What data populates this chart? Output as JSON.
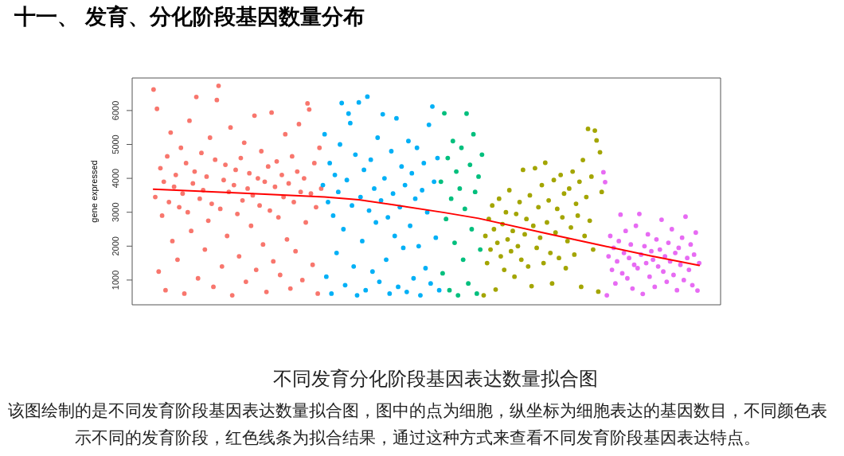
{
  "chart_data": {
    "type": "scatter",
    "title": "十一、 发育、分化阶段基因数量分布",
    "ylabel": "gene expressed",
    "annotations": [
      "不同发育分化阶段基因表达数量拟合图",
      "该图绘制的是不同发育阶段基因表达数量拟合图，图中的点为细胞，纵坐标为细胞表达的基因数目，不同颜色表示不同的发育阶段，红色线条为拟合结果，通过这种方式来查看不同发育阶段基因表达特点。"
    ],
    "categories": [
      null,
      null,
      null,
      null,
      null,
      null,
      null,
      null,
      null,
      null,
      null,
      null,
      null,
      null,
      null,
      null,
      null,
      null,
      null,
      null,
      null,
      null,
      null,
      null,
      null,
      null,
      null,
      null,
      null,
      null,
      null,
      null,
      null,
      null,
      null,
      null,
      null,
      null,
      null,
      null,
      null,
      null,
      null,
      null,
      null,
      null,
      null,
      null,
      null,
      null,
      null,
      null,
      null,
      null,
      null,
      null,
      null,
      null,
      null,
      null,
      null,
      null,
      null,
      null,
      null,
      null,
      null,
      null,
      null,
      null,
      null,
      null,
      null,
      null,
      null,
      null,
      null,
      null,
      null,
      null,
      null,
      null,
      null,
      null,
      null,
      null,
      null,
      null,
      null,
      null,
      null,
      null,
      null,
      null,
      null,
      null,
      null,
      null,
      null,
      null,
      null,
      null,
      null,
      null,
      null,
      null,
      null,
      null,
      null,
      null,
      null,
      null,
      null,
      null,
      null,
      null,
      null,
      null,
      null,
      null,
      null,
      null,
      null,
      null,
      null,
      null,
      null,
      null,
      null,
      null,
      null,
      null,
      null,
      null,
      null,
      null,
      null,
      null,
      null,
      null,
      null,
      null,
      null,
      null,
      null,
      null,
      null,
      null,
      null,
      null,
      null,
      null,
      null,
      null,
      null,
      null,
      null,
      null,
      null,
      null,
      null,
      null,
      null,
      null,
      null,
      null,
      null,
      null,
      null,
      null,
      null,
      null,
      null,
      null,
      null,
      null,
      null,
      null,
      null,
      null,
      null,
      null,
      null,
      null,
      null,
      null,
      null,
      null,
      null,
      null,
      null,
      null,
      null,
      null,
      null,
      null,
      null,
      null,
      null,
      null,
      null,
      null,
      null,
      null,
      null,
      null,
      null,
      null,
      null,
      null,
      null,
      null,
      null,
      null,
      null,
      null,
      null,
      null,
      null,
      null,
      null,
      null,
      null,
      null,
      null,
      null,
      null,
      null,
      null,
      null,
      null,
      null,
      null,
      null,
      null,
      null,
      null,
      null,
      null,
      null,
      null,
      null,
      null,
      null,
      null,
      null,
      null,
      null,
      null,
      null,
      null,
      null,
      null,
      null,
      null,
      null,
      null,
      null,
      null,
      null,
      null,
      null,
      null,
      null,
      null,
      null,
      null,
      null,
      null,
      null,
      null,
      null,
      null,
      null,
      null,
      null,
      null,
      null,
      null,
      null,
      null,
      null,
      null,
      null,
      null,
      null,
      null,
      null,
      null,
      null,
      null,
      null,
      null,
      null,
      null,
      null,
      null,
      null,
      null,
      null,
      null,
      null,
      null,
      null,
      null,
      null,
      null,
      null,
      null,
      null,
      null,
      null,
      null,
      null,
      null,
      null,
      null,
      null,
      null,
      null,
      null,
      null,
      null,
      null,
      null,
      null,
      null,
      null,
      null,
      null,
      null,
      null,
      null,
      null,
      null,
      null,
      null,
      null,
      null,
      null,
      null,
      null,
      null,
      null
    ],
    "series": [
      {
        "color": "#f8766d",
        "values": [
          null,
          null,
          null,
          null,
          null,
          null,
          null,
          null,
          null,
          null,
          null,
          null,
          6620,
          3450,
          6050,
          1250,
          4300,
          2900,
          3900,
          700,
          4650,
          3300,
          5350,
          2150,
          3750,
          4100,
          1600,
          3150,
          4900,
          3550,
          600,
          4450,
          3000,
          5700,
          2450,
          3850,
          4200,
          6400,
          1050,
          3400,
          4750,
          3650,
          1900,
          4050,
          2750,
          5200,
          3250,
          800,
          4550,
          6310,
          6730,
          3100,
          1400,
          3950,
          4400,
          2300,
          3600,
          5500,
          550,
          3800,
          4250,
          2950,
          1700,
          4600,
          3350,
          5050,
          950,
          3700,
          4150,
          2600,
          3500,
          5850,
          1300,
          4000,
          3200,
          4800,
          2050,
          3900,
          650,
          4350,
          3050,
          5940,
          1550,
          3750,
          4500,
          2850,
          1150,
          4100,
          3450,
          5300,
          2200,
          3850,
          750,
          4650,
          3300,
          1850,
          4200,
          5600,
          3600,
          1000,
          4000,
          2700,
          6210,
          6030,
          3550,
          1450,
          4450,
          3150,
          600,
          4900,
          3700,
          null,
          null,
          null,
          null,
          null,
          null,
          null,
          null,
          null,
          null,
          null,
          null,
          null,
          null,
          null,
          null,
          null,
          null,
          null,
          null,
          null,
          null,
          null,
          null,
          null,
          null,
          null,
          null,
          null,
          null,
          null,
          null,
          null,
          null,
          null,
          null,
          null,
          null,
          null,
          null,
          null,
          null,
          null,
          null,
          null,
          null,
          null,
          null,
          null,
          null,
          null,
          null,
          null,
          null,
          null,
          null,
          null,
          null,
          null,
          null,
          null,
          null,
          null,
          null,
          null,
          null,
          null,
          null,
          null,
          null,
          null,
          null,
          null,
          null,
          null,
          null,
          null,
          null,
          null,
          null,
          null,
          null,
          null,
          null,
          null,
          null,
          null,
          null,
          null,
          null,
          null,
          null,
          null,
          null,
          null,
          null,
          null,
          null,
          null,
          null,
          null,
          null,
          null,
          null,
          null,
          null,
          null,
          null,
          null,
          null,
          null,
          null,
          null,
          null,
          null,
          null,
          null,
          null,
          null,
          null,
          null,
          null,
          null,
          null,
          null,
          null,
          null,
          null,
          null,
          null,
          null,
          null,
          null,
          null,
          null,
          null,
          null,
          null,
          null,
          null,
          null,
          null,
          null,
          null,
          null,
          null,
          null,
          null,
          null,
          null,
          null,
          null,
          null,
          null,
          null,
          null,
          null,
          null,
          null,
          null,
          null,
          null,
          null,
          null,
          null,
          null,
          null,
          null,
          null,
          null,
          null,
          null,
          null,
          null,
          null,
          null,
          null,
          null,
          null,
          null,
          null,
          null,
          null,
          null,
          null,
          null,
          null,
          null,
          null,
          null,
          null,
          null,
          null,
          null,
          null,
          null,
          null,
          null,
          null,
          null,
          null,
          null,
          null,
          null,
          null,
          null,
          null,
          null,
          null,
          null,
          null,
          null,
          null,
          null,
          null,
          null,
          null,
          null,
          null,
          null,
          null,
          null,
          null,
          null,
          null,
          null,
          null,
          null,
          null,
          null,
          null,
          null,
          null
        ]
      },
      {
        "color": "#00b0f6",
        "values": [
          null,
          null,
          null,
          null,
          null,
          null,
          null,
          null,
          null,
          null,
          null,
          null,
          null,
          null,
          null,
          null,
          null,
          null,
          null,
          null,
          null,
          null,
          null,
          null,
          null,
          null,
          null,
          null,
          null,
          null,
          null,
          null,
          null,
          null,
          null,
          null,
          null,
          null,
          null,
          null,
          null,
          null,
          null,
          null,
          null,
          null,
          null,
          null,
          null,
          null,
          null,
          null,
          null,
          null,
          null,
          null,
          null,
          null,
          null,
          null,
          null,
          null,
          null,
          null,
          null,
          null,
          null,
          null,
          null,
          null,
          null,
          null,
          null,
          null,
          null,
          null,
          null,
          null,
          null,
          null,
          null,
          null,
          null,
          null,
          null,
          null,
          null,
          null,
          null,
          null,
          null,
          null,
          null,
          null,
          null,
          null,
          null,
          null,
          null,
          null,
          null,
          null,
          null,
          null,
          null,
          null,
          null,
          null,
          null,
          null,
          null,
          3800,
          5300,
          1100,
          3300,
          4450,
          600,
          2900,
          4100,
          1800,
          3600,
          5000,
          6220,
          2500,
          850,
          3950,
          5910,
          5630,
          3200,
          1400,
          4700,
          550,
          6240,
          3450,
          2150,
          4250,
          700,
          6410,
          3050,
          4550,
          1250,
          3700,
          2700,
          5200,
          950,
          3350,
          5890,
          4000,
          1600,
          2850,
          600,
          4800,
          3550,
          2300,
          5770,
          800,
          3150,
          4350,
          1950,
          3800,
          650,
          5100,
          2600,
          4150,
          1050,
          3400,
          4900,
          2000,
          550,
          3650,
          4450,
          1350,
          3000,
          5580,
          900,
          6120,
          3900,
          2250,
          4600,
          700,
          null,
          null,
          null,
          null,
          null,
          null,
          null,
          null,
          null,
          null,
          null,
          null,
          null,
          null,
          null,
          null,
          null,
          null,
          null,
          null,
          null,
          null,
          null,
          null,
          null,
          null,
          null,
          null,
          null,
          null,
          null,
          null,
          null,
          null,
          null,
          null,
          null,
          null,
          null,
          null,
          null,
          null,
          null,
          null,
          null,
          null,
          null,
          null,
          null,
          null,
          null,
          null,
          null,
          null,
          null,
          null,
          null,
          null,
          null,
          null,
          null,
          null,
          null,
          null,
          null,
          null,
          null,
          null,
          null,
          null,
          null,
          null,
          null,
          null,
          null,
          null,
          null,
          null,
          null,
          null,
          null,
          null,
          null,
          null,
          null,
          null,
          null,
          null,
          null,
          null,
          null,
          null,
          null,
          null,
          null,
          null,
          null,
          null,
          null,
          null,
          null,
          null,
          null,
          null,
          null,
          null,
          null,
          null,
          null,
          null,
          null,
          null,
          null,
          null,
          null,
          null,
          null,
          null,
          null,
          null,
          null,
          null,
          null,
          null,
          null,
          null,
          null,
          null,
          null,
          null,
          null,
          null,
          null,
          null,
          null,
          null,
          null,
          null,
          null,
          null,
          null,
          null,
          null,
          null,
          null,
          null,
          null,
          null,
          null,
          null,
          null,
          null,
          null,
          null,
          null,
          null,
          null,
          null,
          null,
          null,
          null,
          null,
          null,
          null
        ]
      },
      {
        "color": "#00bf7d",
        "values": [
          null,
          null,
          null,
          null,
          null,
          null,
          null,
          null,
          null,
          null,
          null,
          null,
          null,
          null,
          null,
          null,
          null,
          null,
          null,
          null,
          null,
          null,
          null,
          null,
          null,
          null,
          null,
          null,
          null,
          null,
          null,
          null,
          null,
          null,
          null,
          null,
          null,
          null,
          null,
          null,
          null,
          null,
          null,
          null,
          null,
          null,
          null,
          null,
          null,
          null,
          null,
          null,
          null,
          null,
          null,
          null,
          null,
          null,
          null,
          null,
          null,
          null,
          null,
          null,
          null,
          null,
          null,
          null,
          null,
          null,
          null,
          null,
          null,
          null,
          null,
          null,
          null,
          null,
          null,
          null,
          null,
          null,
          null,
          null,
          null,
          null,
          null,
          null,
          null,
          null,
          null,
          null,
          null,
          null,
          null,
          null,
          null,
          null,
          null,
          null,
          null,
          null,
          null,
          null,
          null,
          null,
          null,
          null,
          null,
          null,
          null,
          null,
          null,
          null,
          null,
          null,
          null,
          null,
          null,
          null,
          null,
          null,
          null,
          null,
          null,
          null,
          null,
          null,
          null,
          null,
          null,
          null,
          null,
          null,
          null,
          null,
          null,
          null,
          null,
          null,
          null,
          null,
          null,
          null,
          null,
          null,
          null,
          null,
          null,
          null,
          null,
          null,
          null,
          null,
          null,
          null,
          null,
          null,
          null,
          null,
          null,
          null,
          null,
          null,
          null,
          null,
          null,
          null,
          null,
          null,
          null,
          null,
          null,
          null,
          null,
          null,
          null,
          null,
          null,
          null,
          3900,
          1200,
          5920,
          2800,
          4600,
          700,
          3400,
          5100,
          2100,
          4200,
          550,
          3700,
          4900,
          1600,
          3100,
          5910,
          900,
          4400,
          2500,
          5300,
          3600,
          600,
          4050,
          1900,
          4700,
          null,
          null,
          null,
          null,
          null,
          null,
          null,
          null,
          null,
          null,
          null,
          null,
          null,
          null,
          null,
          null,
          null,
          null,
          null,
          null,
          null,
          null,
          null,
          null,
          null,
          null,
          null,
          null,
          null,
          null,
          null,
          null,
          null,
          null,
          null,
          null,
          null,
          null,
          null,
          null,
          null,
          null,
          null,
          null,
          null,
          null,
          null,
          null,
          null,
          null,
          null,
          null,
          null,
          null,
          null,
          null,
          null,
          null,
          null,
          null,
          null,
          null,
          null,
          null,
          null,
          null,
          null,
          null,
          null,
          null,
          null,
          null,
          null,
          null,
          null,
          null,
          null,
          null,
          null,
          null,
          null,
          null,
          null,
          null,
          null,
          null,
          null,
          null,
          null,
          null,
          null,
          null,
          null,
          null,
          null,
          null,
          null,
          null,
          null,
          null,
          null,
          null,
          null,
          null,
          null,
          null,
          null,
          null,
          null,
          null,
          null,
          null,
          null,
          null,
          null,
          null,
          null,
          null,
          null,
          null,
          null,
          null,
          null,
          null,
          null,
          null,
          null,
          null,
          null,
          null,
          null,
          null,
          null,
          null,
          null,
          null,
          null,
          null,
          null
        ]
      },
      {
        "color": "#a3a500",
        "values": [
          null,
          null,
          null,
          null,
          null,
          null,
          null,
          null,
          null,
          null,
          null,
          null,
          null,
          null,
          null,
          null,
          null,
          null,
          null,
          null,
          null,
          null,
          null,
          null,
          null,
          null,
          null,
          null,
          null,
          null,
          null,
          null,
          null,
          null,
          null,
          null,
          null,
          null,
          null,
          null,
          null,
          null,
          null,
          null,
          null,
          null,
          null,
          null,
          null,
          null,
          null,
          null,
          null,
          null,
          null,
          null,
          null,
          null,
          null,
          null,
          null,
          null,
          null,
          null,
          null,
          null,
          null,
          null,
          null,
          null,
          null,
          null,
          null,
          null,
          null,
          null,
          null,
          null,
          null,
          null,
          null,
          null,
          null,
          null,
          null,
          null,
          null,
          null,
          null,
          null,
          null,
          null,
          null,
          null,
          null,
          null,
          null,
          null,
          null,
          null,
          null,
          null,
          null,
          null,
          null,
          null,
          null,
          null,
          null,
          null,
          null,
          null,
          null,
          null,
          null,
          null,
          null,
          null,
          null,
          null,
          null,
          null,
          null,
          null,
          null,
          null,
          null,
          null,
          null,
          null,
          null,
          null,
          null,
          null,
          null,
          null,
          null,
          null,
          null,
          null,
          null,
          null,
          null,
          null,
          null,
          null,
          null,
          null,
          null,
          null,
          null,
          null,
          null,
          null,
          null,
          null,
          null,
          null,
          null,
          null,
          null,
          null,
          null,
          null,
          null,
          null,
          null,
          null,
          null,
          null,
          null,
          null,
          null,
          null,
          null,
          null,
          null,
          null,
          null,
          null,
          null,
          null,
          null,
          null,
          null,
          null,
          null,
          null,
          null,
          null,
          null,
          null,
          null,
          null,
          null,
          null,
          null,
          null,
          null,
          null,
          null,
          null,
          null,
          null,
          null,
          550,
          2300,
          1500,
          2800,
          1900,
          3200,
          2500,
          720,
          2100,
          3400,
          1700,
          2650,
          1300,
          3000,
          2200,
          3650,
          1850,
          2450,
          1100,
          2950,
          2000,
          3300,
          1600,
          4250,
          2350,
          2800,
          1400,
          3500,
          820,
          2600,
          4300,
          1950,
          3150,
          2250,
          3800,
          1500,
          4460,
          2700,
          3350,
          1800,
          900,
          3950,
          2400,
          3100,
          1650,
          4100,
          2850,
          3550,
          1350,
          2150,
          3700,
          2550,
          4200,
          1750,
          3250,
          2900,
          3900,
          800,
          4540,
          2300,
          3450,
          5460,
          2750,
          4050,
          1900,
          5410,
          5120,
          660,
          4770,
          3600,
          null,
          null,
          null,
          null,
          null,
          null,
          null,
          null,
          null,
          null,
          null,
          null,
          null,
          null,
          null,
          null,
          null,
          null,
          null,
          null,
          null,
          null,
          null,
          null,
          null,
          null,
          null,
          null,
          null,
          null,
          null,
          null,
          null,
          null,
          null,
          null,
          null,
          null,
          null,
          null,
          null,
          null,
          null,
          null,
          null,
          null,
          null,
          null,
          null,
          null,
          null,
          null,
          null,
          null,
          null,
          null,
          null,
          null,
          null,
          null,
          null,
          null,
          null,
          null,
          null,
          null,
          null,
          null,
          null
        ]
      },
      {
        "color": "#e76bf3",
        "values": [
          null,
          null,
          null,
          null,
          null,
          null,
          null,
          null,
          null,
          null,
          null,
          null,
          null,
          null,
          null,
          null,
          null,
          null,
          null,
          null,
          null,
          null,
          null,
          null,
          null,
          null,
          null,
          null,
          null,
          null,
          null,
          null,
          null,
          null,
          null,
          null,
          null,
          null,
          null,
          null,
          null,
          null,
          null,
          null,
          null,
          null,
          null,
          null,
          null,
          null,
          null,
          null,
          null,
          null,
          null,
          null,
          null,
          null,
          null,
          null,
          null,
          null,
          null,
          null,
          null,
          null,
          null,
          null,
          null,
          null,
          null,
          null,
          null,
          null,
          null,
          null,
          null,
          null,
          null,
          null,
          null,
          null,
          null,
          null,
          null,
          null,
          null,
          null,
          null,
          null,
          null,
          null,
          null,
          null,
          null,
          null,
          null,
          null,
          null,
          null,
          null,
          null,
          null,
          null,
          null,
          null,
          null,
          null,
          null,
          null,
          null,
          null,
          null,
          null,
          null,
          null,
          null,
          null,
          null,
          null,
          null,
          null,
          null,
          null,
          null,
          null,
          null,
          null,
          null,
          null,
          null,
          null,
          null,
          null,
          null,
          null,
          null,
          null,
          null,
          null,
          null,
          null,
          null,
          null,
          null,
          null,
          null,
          null,
          null,
          null,
          null,
          null,
          null,
          null,
          null,
          null,
          null,
          null,
          null,
          null,
          null,
          null,
          null,
          null,
          null,
          null,
          null,
          null,
          null,
          null,
          null,
          null,
          null,
          null,
          null,
          null,
          null,
          null,
          null,
          null,
          null,
          null,
          null,
          null,
          null,
          null,
          null,
          null,
          null,
          null,
          null,
          null,
          null,
          null,
          null,
          null,
          null,
          null,
          null,
          null,
          null,
          null,
          null,
          null,
          null,
          null,
          null,
          null,
          null,
          null,
          null,
          null,
          null,
          null,
          null,
          null,
          null,
          null,
          null,
          null,
          null,
          null,
          null,
          null,
          null,
          null,
          null,
          null,
          null,
          null,
          null,
          null,
          null,
          null,
          null,
          null,
          null,
          null,
          null,
          null,
          null,
          null,
          null,
          null,
          null,
          null,
          null,
          null,
          null,
          null,
          null,
          null,
          null,
          null,
          null,
          null,
          null,
          null,
          null,
          null,
          null,
          null,
          null,
          null,
          null,
          null,
          null,
          null,
          null,
          null,
          null,
          null,
          null,
          null,
          null,
          4180,
          3890,
          550,
          1700,
          2300,
          1300,
          1950,
          900,
          1550,
          2150,
          2930,
          1200,
          1800,
          2450,
          1050,
          1650,
          2050,
          750,
          1450,
          2600,
          1350,
          2950,
          1750,
          590,
          2000,
          1500,
          2350,
          1100,
          1850,
          1600,
          800,
          2200,
          1400,
          1900,
          2780,
          1250,
          1700,
          950,
          2100,
          1550,
          2500,
          1150,
          1800,
          700,
          1950,
          1450,
          2250,
          1000,
          2870,
          1650,
          1300,
          2050,
          850,
          1750,
          2400,
          690,
          1500,
          null,
          null,
          null,
          null,
          null,
          null,
          null,
          null,
          null,
          null,
          null,
          null
        ]
      },
      {
        "type": "line",
        "marker": "none",
        "color": "#ff0000",
        "values": [
          null,
          null,
          null,
          null,
          null,
          null,
          null,
          null,
          null,
          null,
          null,
          null,
          3680,
          null,
          null,
          null,
          null,
          null,
          null,
          null,
          null,
          null,
          null,
          null,
          null,
          null,
          null,
          null,
          null,
          null,
          null,
          null,
          null,
          null,
          null,
          null,
          null,
          null,
          null,
          null,
          null,
          null,
          null,
          null,
          null,
          null,
          null,
          null,
          null,
          null,
          null,
          null,
          null,
          null,
          null,
          null,
          null,
          null,
          null,
          null,
          null,
          null,
          3570,
          null,
          null,
          null,
          null,
          null,
          null,
          null,
          null,
          null,
          null,
          null,
          null,
          null,
          null,
          null,
          null,
          null,
          null,
          null,
          null,
          null,
          null,
          null,
          null,
          null,
          null,
          null,
          null,
          null,
          null,
          null,
          null,
          null,
          null,
          null,
          null,
          null,
          null,
          null,
          null,
          null,
          null,
          null,
          null,
          null,
          null,
          null,
          null,
          null,
          3450,
          null,
          null,
          null,
          null,
          null,
          null,
          null,
          null,
          null,
          null,
          null,
          null,
          null,
          null,
          null,
          null,
          null,
          null,
          null,
          3370,
          null,
          null,
          null,
          null,
          null,
          null,
          null,
          null,
          null,
          null,
          null,
          null,
          null,
          null,
          null,
          null,
          null,
          null,
          null,
          3220,
          null,
          null,
          null,
          null,
          null,
          null,
          null,
          null,
          null,
          null,
          null,
          null,
          null,
          null,
          null,
          null,
          null,
          null,
          null,
          null,
          null,
          null,
          null,
          null,
          null,
          null,
          null,
          null,
          null,
          2990,
          null,
          null,
          null,
          null,
          null,
          null,
          null,
          null,
          null,
          null,
          null,
          null,
          null,
          null,
          null,
          null,
          null,
          null,
          null,
          2820,
          null,
          null,
          null,
          null,
          null,
          null,
          null,
          null,
          null,
          null,
          null,
          null,
          null,
          null,
          null,
          null,
          null,
          null,
          null,
          null,
          null,
          null,
          null,
          null,
          null,
          null,
          null,
          null,
          null,
          null,
          null,
          null,
          null,
          null,
          null,
          null,
          null,
          null,
          null,
          2370,
          null,
          null,
          null,
          null,
          null,
          null,
          null,
          null,
          null,
          null,
          null,
          null,
          null,
          null,
          null,
          null,
          null,
          null,
          null,
          null,
          null,
          null,
          null,
          null,
          null,
          null,
          null,
          null,
          null,
          2040,
          null,
          null,
          null,
          null,
          null,
          null,
          null,
          null,
          null,
          null,
          null,
          null,
          null,
          null,
          null,
          null,
          null,
          null,
          null,
          null,
          null,
          null,
          null,
          null,
          null,
          null,
          null,
          null,
          null,
          1720,
          null,
          null,
          null,
          null,
          null,
          null,
          null,
          null,
          null,
          null,
          null,
          null,
          null,
          null,
          null,
          null,
          null,
          null,
          null,
          null,
          null,
          null,
          null,
          null,
          null,
          null,
          null,
          null,
          1430,
          null,
          null,
          null,
          null,
          null,
          null,
          null,
          null,
          null,
          null,
          null,
          null
        ]
      }
    ],
    "ylim": [
      270,
      6960
    ],
    "yticks": [
      1000,
      2000,
      3000,
      4000,
      5000,
      6000
    ],
    "tick_labels": "y",
    "marker": "circle"
  }
}
